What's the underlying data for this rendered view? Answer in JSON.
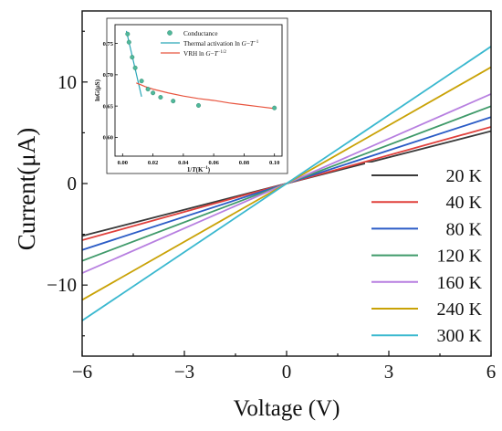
{
  "chart_data": [
    {
      "type": "line",
      "xlabel": "Voltage (V)",
      "ylabel": "Current(μA)",
      "xlim": [
        -6,
        6
      ],
      "ylim": [
        -17,
        17
      ],
      "xticks": [
        -6,
        -3,
        0,
        3,
        6
      ],
      "xtick_labels": [
        "−6",
        "−3",
        "0",
        "3",
        "6"
      ],
      "yticks": [
        -10,
        0,
        10
      ],
      "ytick_labels": [
        "−10",
        "0",
        "10"
      ],
      "grid": false,
      "legend_position": "bottom-right",
      "series": [
        {
          "name": "20 K",
          "color": "#3a3a3a",
          "slope": 0.86
        },
        {
          "name": "40 K",
          "color": "#e0403c",
          "slope": 0.93
        },
        {
          "name": "80 K",
          "color": "#2b5cc6",
          "slope": 1.09
        },
        {
          "name": "120 K",
          "color": "#3f9a6a",
          "slope": 1.27
        },
        {
          "name": "160 K",
          "color": "#b77fe0",
          "slope": 1.47
        },
        {
          "name": "240 K",
          "color": "#c9a206",
          "slope": 1.91
        },
        {
          "name": "300 K",
          "color": "#3ab8cf",
          "slope": 2.25
        }
      ]
    },
    {
      "type": "scatter",
      "xlabel_parts": [
        "1/",
        "T",
        "(K",
        "−1",
        ")"
      ],
      "ylabel": "lnG(μS)",
      "xlim": [
        -0.005,
        0.105
      ],
      "ylim": [
        0.57,
        0.78
      ],
      "xticks": [
        0.0,
        0.02,
        0.04,
        0.06,
        0.08,
        0.1
      ],
      "xtick_labels": [
        "0.00",
        "0.02",
        "0.04",
        "0.06",
        "0.08",
        "0.10"
      ],
      "yticks": [
        0.6,
        0.65,
        0.7,
        0.75
      ],
      "ytick_labels": [
        "0.60",
        "0.65",
        "0.70",
        "0.75"
      ],
      "legend": [
        {
          "label_parts": [
            "Conductance"
          ],
          "color": "#4fb89a",
          "kind": "marker"
        },
        {
          "label_parts": [
            "Thermal activation ln ",
            "G",
            "−",
            "T",
            "−1"
          ],
          "color": "#2aa6b8",
          "kind": "line"
        },
        {
          "label_parts": [
            "VRH ln ",
            "G",
            "−",
            "T",
            "−1/2"
          ],
          "color": "#e8543e",
          "kind": "line"
        }
      ],
      "points": [
        {
          "x": 0.0033,
          "y": 0.765
        },
        {
          "x": 0.0042,
          "y": 0.752
        },
        {
          "x": 0.0063,
          "y": 0.728
        },
        {
          "x": 0.0083,
          "y": 0.711
        },
        {
          "x": 0.0125,
          "y": 0.69
        },
        {
          "x": 0.0167,
          "y": 0.677
        },
        {
          "x": 0.02,
          "y": 0.671
        },
        {
          "x": 0.025,
          "y": 0.664
        },
        {
          "x": 0.0333,
          "y": 0.658
        },
        {
          "x": 0.05,
          "y": 0.651
        },
        {
          "x": 0.1,
          "y": 0.647
        }
      ],
      "fits": [
        {
          "name": "thermal-activation-fit",
          "color": "#2aa6b8",
          "points": [
            {
              "x": 0.0025,
              "y": 0.77
            },
            {
              "x": 0.0068,
              "y": 0.725
            },
            {
              "x": 0.0125,
              "y": 0.665
            }
          ]
        },
        {
          "name": "vrh-fit",
          "color": "#e8543e",
          "points": [
            {
              "x": 0.009,
              "y": 0.687
            },
            {
              "x": 0.012,
              "y": 0.684
            },
            {
              "x": 0.015,
              "y": 0.681
            },
            {
              "x": 0.02,
              "y": 0.677
            },
            {
              "x": 0.03,
              "y": 0.671
            },
            {
              "x": 0.04,
              "y": 0.666
            },
            {
              "x": 0.05,
              "y": 0.662
            },
            {
              "x": 0.06,
              "y": 0.659
            },
            {
              "x": 0.07,
              "y": 0.655
            },
            {
              "x": 0.08,
              "y": 0.652
            },
            {
              "x": 0.09,
              "y": 0.649
            },
            {
              "x": 0.1,
              "y": 0.646
            }
          ]
        }
      ]
    }
  ]
}
